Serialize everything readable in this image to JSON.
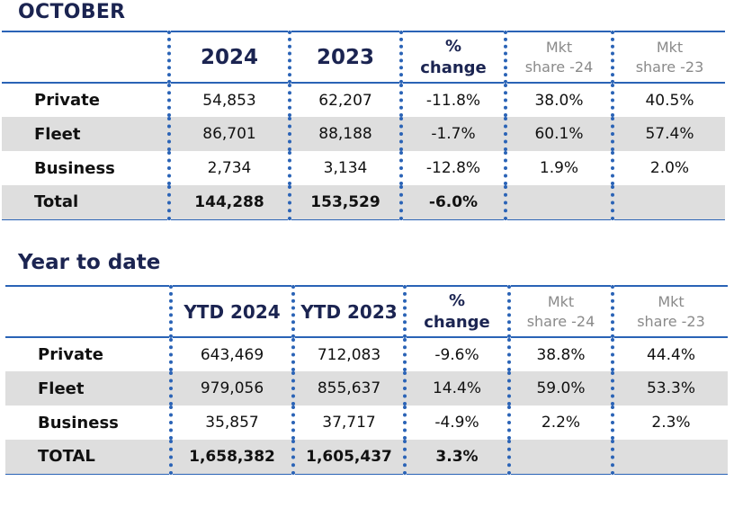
{
  "october": {
    "title": "OCTOBER",
    "headers": {
      "col1": "2024",
      "col2": "2023",
      "pct_line1": "%",
      "pct_line2": "change",
      "mkt1_line1": "Mkt",
      "mkt1_line2": "share -24",
      "mkt2_line1": "Mkt",
      "mkt2_line2": "share -23"
    },
    "rows": [
      {
        "label": "Private",
        "v2024": "54,853",
        "v2023": "62,207",
        "change": "-11.8%",
        "share24": "38.0%",
        "share23": "40.5%"
      },
      {
        "label": "Fleet",
        "v2024": "86,701",
        "v2023": "88,188",
        "change": "-1.7%",
        "share24": "60.1%",
        "share23": "57.4%"
      },
      {
        "label": "Business",
        "v2024": "2,734",
        "v2023": "3,134",
        "change": "-12.8%",
        "share24": "1.9%",
        "share23": "2.0%"
      },
      {
        "label": "Total",
        "v2024": "144,288",
        "v2023": "153,529",
        "change": "-6.0%",
        "share24": "",
        "share23": ""
      }
    ]
  },
  "ytd": {
    "title": "Year to date",
    "headers": {
      "col1": "YTD 2024",
      "col2": "YTD 2023",
      "pct_line1": "%",
      "pct_line2": "change",
      "mkt1_line1": "Mkt",
      "mkt1_line2": "share -24",
      "mkt2_line1": "Mkt",
      "mkt2_line2": "share -23"
    },
    "rows": [
      {
        "label": "Private",
        "v2024": "643,469",
        "v2023": "712,083",
        "change": "-9.6%",
        "share24": "38.8%",
        "share23": "44.4%"
      },
      {
        "label": "Fleet",
        "v2024": "979,056",
        "v2023": "855,637",
        "change": "14.4%",
        "share24": "59.0%",
        "share23": "53.3%"
      },
      {
        "label": "Business",
        "v2024": "35,857",
        "v2023": "37,717",
        "change": "-4.9%",
        "share24": "2.2%",
        "share23": "2.3%"
      },
      {
        "label": "TOTAL",
        "v2024": "1,658,382",
        "v2023": "1,605,437",
        "change": "3.3%",
        "share24": "",
        "share23": ""
      }
    ]
  },
  "colors": {
    "title": "#1b2451",
    "rule": "#2a63b6",
    "shade": "#dedede",
    "muted_header": "#8a8a8a"
  }
}
